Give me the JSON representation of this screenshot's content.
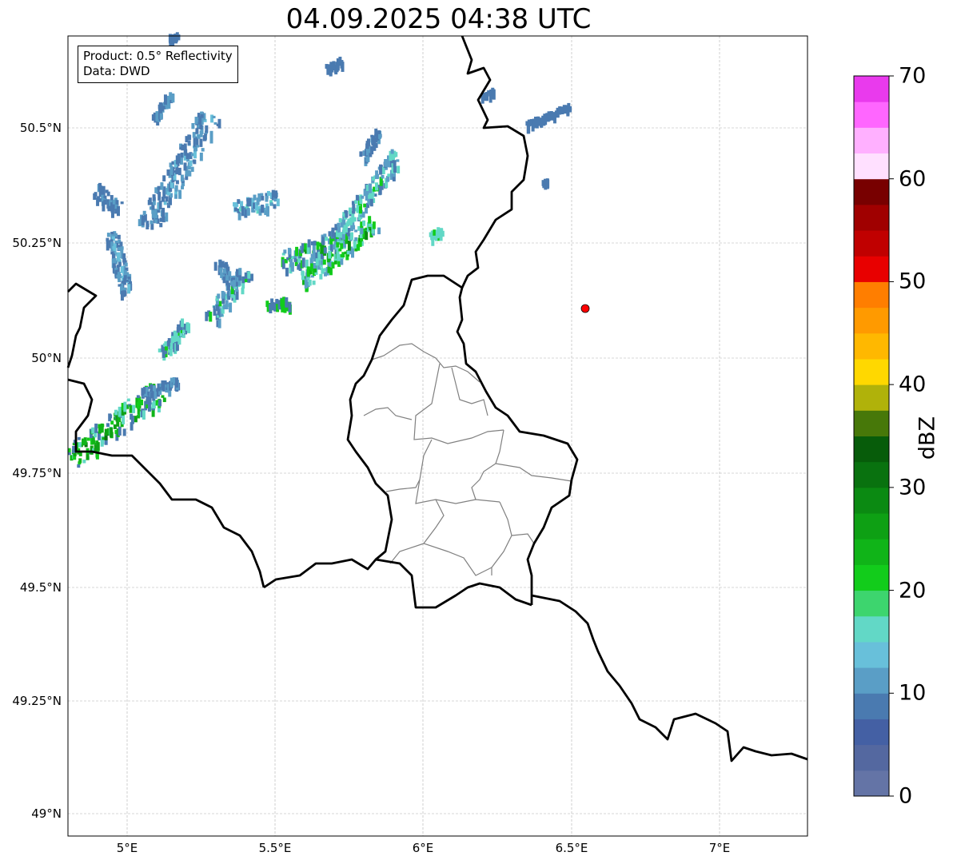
{
  "title": "04.09.2025 04:38 UTC",
  "legend": {
    "product": "Product: 0.5° Reflectivity",
    "data_source": "Data: DWD"
  },
  "axes": {
    "lat_labels": [
      "50.5°N",
      "50.25°N",
      "50°N",
      "49.75°N",
      "49.5°N",
      "49.25°N",
      "49°N"
    ],
    "lon_labels": [
      "5°E",
      "5.5°E",
      "6°E",
      "6.5°E",
      "7°E"
    ]
  },
  "colorbar": {
    "label": "dBZ",
    "ticks": [
      "0",
      "10",
      "20",
      "30",
      "40",
      "50",
      "60",
      "70"
    ],
    "range": [
      0,
      70
    ],
    "step": 2.5,
    "colors": [
      "#6474a6",
      "#5468a0",
      "#4460a4",
      "#4a7ab0",
      "#5a9ec6",
      "#68c0da",
      "#62d8c6",
      "#3dd56e",
      "#12cc1b",
      "#10b418",
      "#0ea014",
      "#0b8a12",
      "#09720f",
      "#075c0a",
      "#477809",
      "#b0b20a",
      "#ffd800",
      "#ffb800",
      "#ff9a00",
      "#ff7e00",
      "#e80000",
      "#c00000",
      "#a00000",
      "#780000",
      "#ffe0ff",
      "#ffb0ff",
      "#ff66ff",
      "#e93aed"
    ]
  },
  "marker_color": "#ff0000"
}
